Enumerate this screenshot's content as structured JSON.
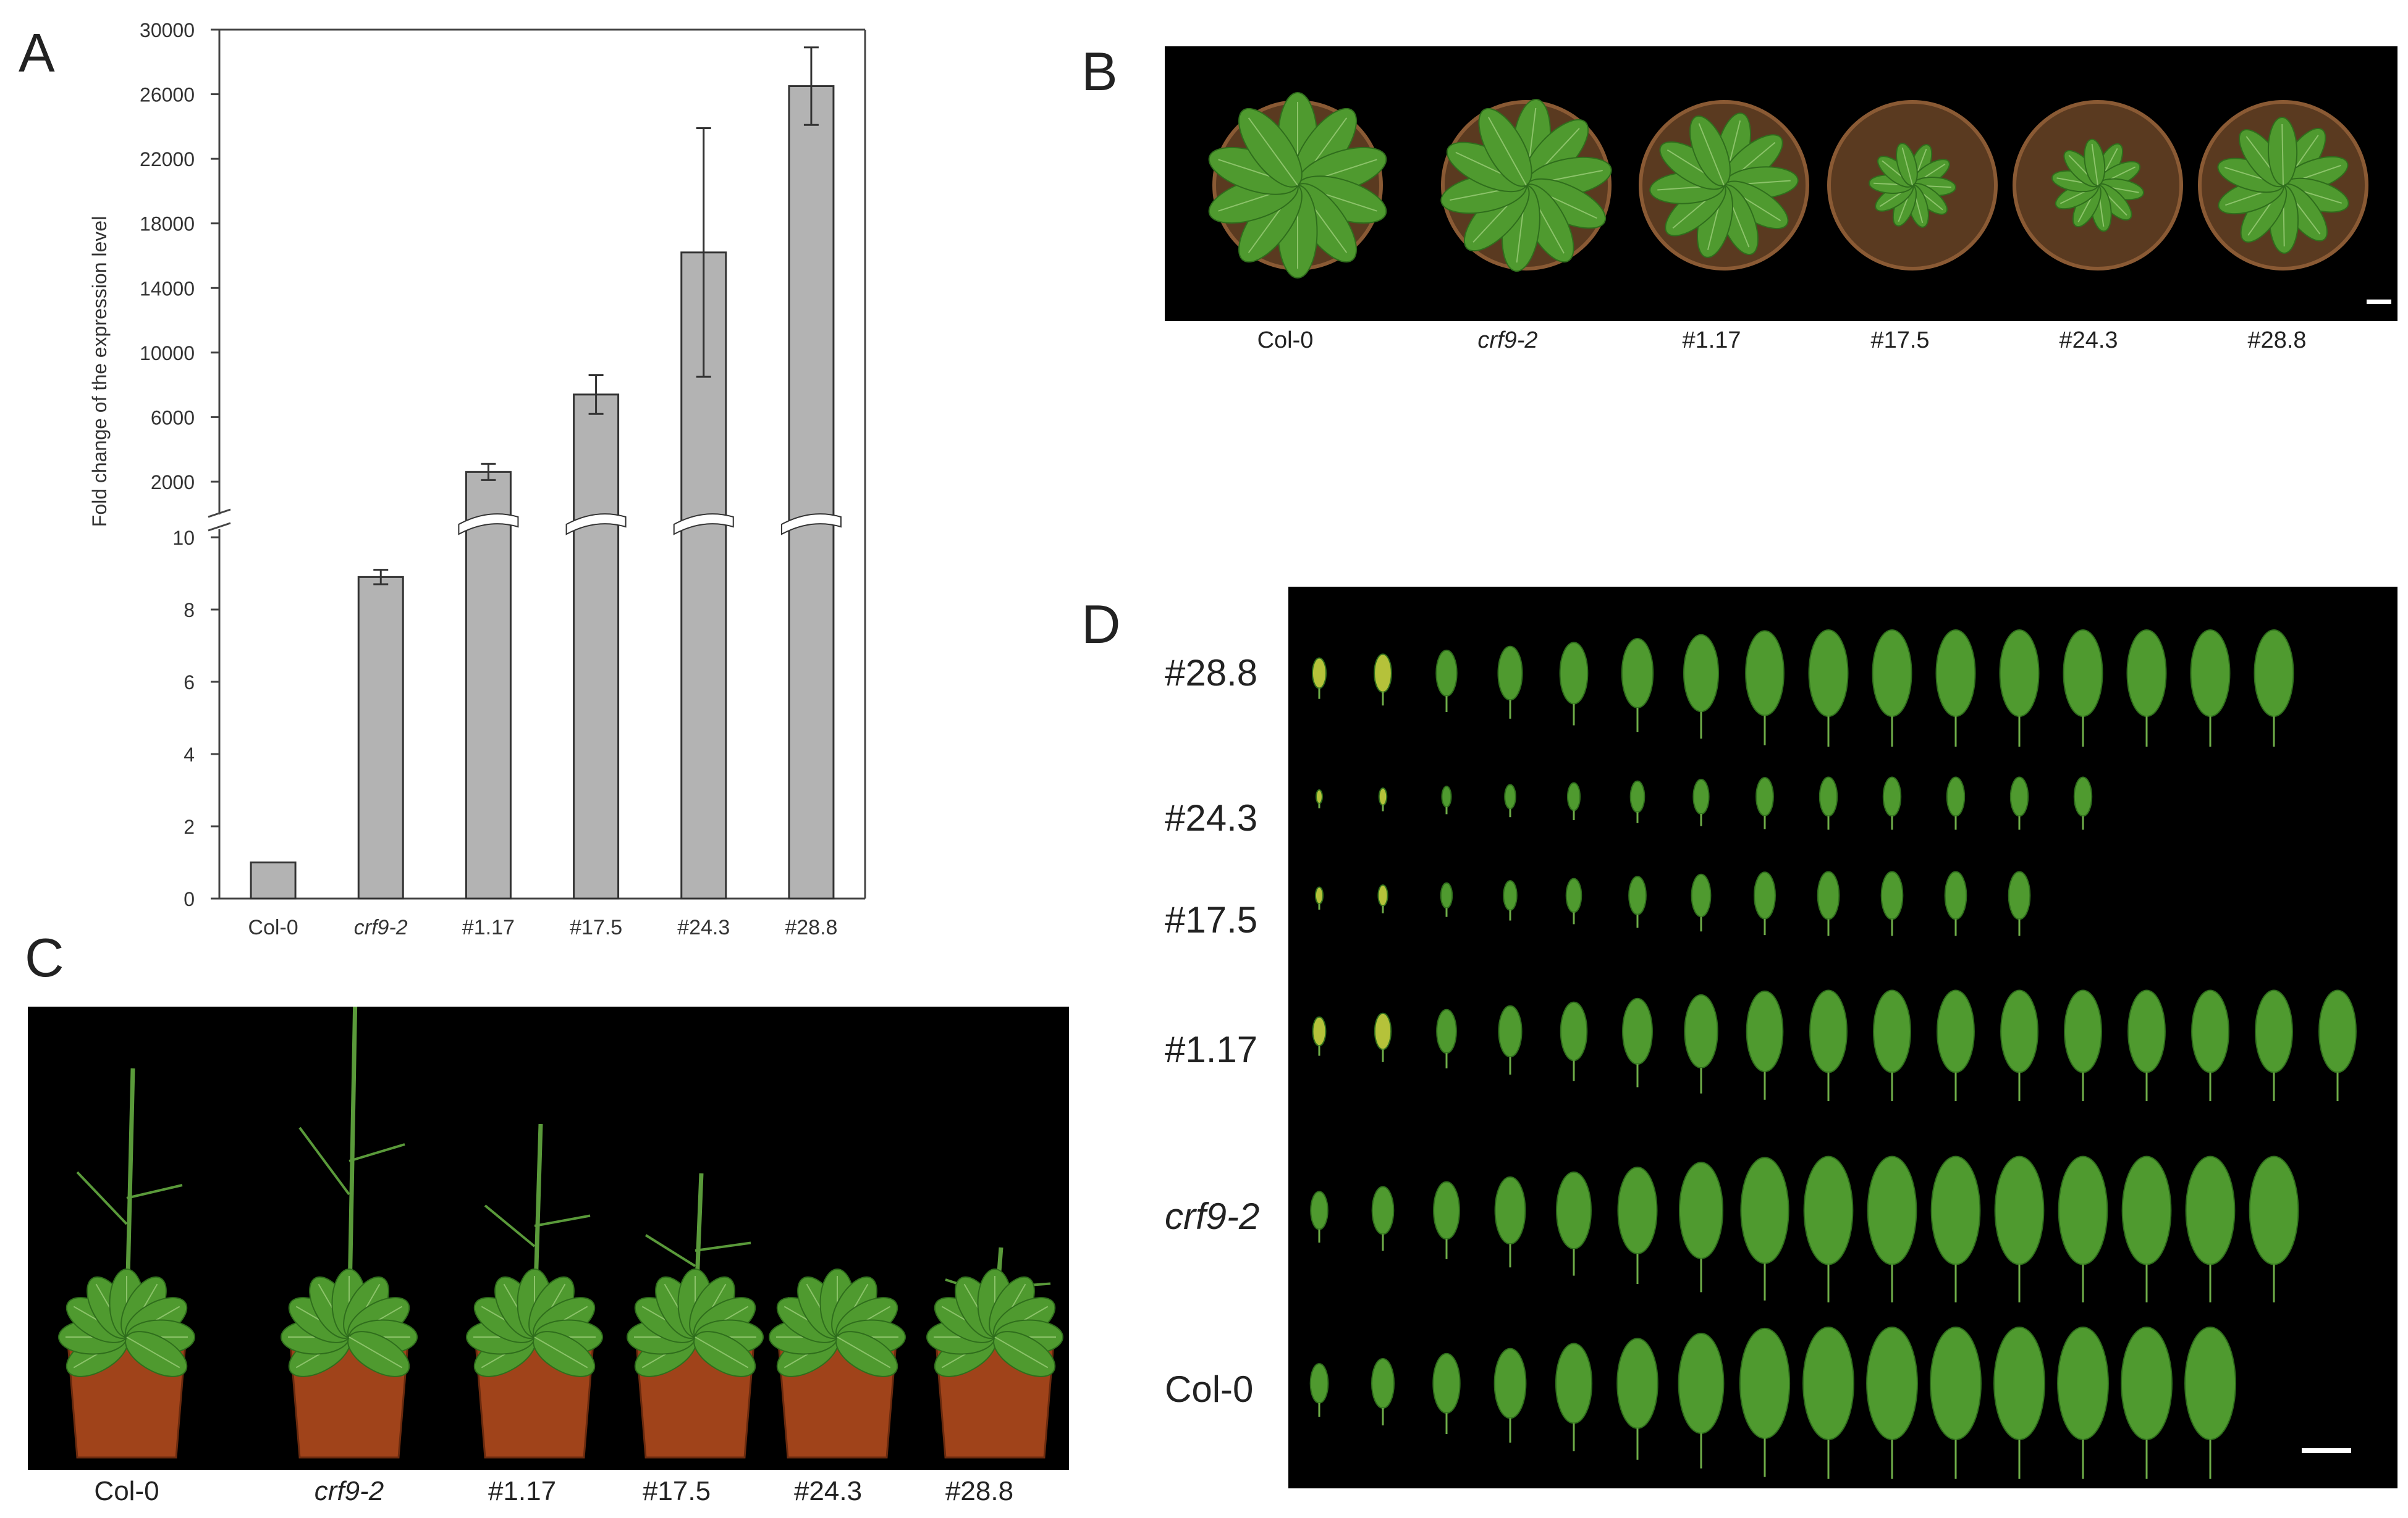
{
  "panels": {
    "a": "A",
    "b": "B",
    "c": "C",
    "d": "D"
  },
  "chart_data": {
    "type": "bar",
    "ylabel": "Fold change of the expression level",
    "broken_axis": true,
    "lower_axis": {
      "ylim": [
        0,
        10
      ],
      "ticks": [
        "0",
        "2",
        "4",
        "6",
        "8",
        "10"
      ]
    },
    "upper_axis": {
      "ylim": [
        2000,
        30000
      ],
      "ticks": [
        "2000",
        "6000",
        "10000",
        "14000",
        "18000",
        "22000",
        "26000",
        "30000"
      ]
    },
    "categories": [
      "Col-0",
      "crf9-2",
      "#1.17",
      "#17.5",
      "#24.3",
      "#28.8"
    ],
    "italic_categories": [
      "crf9-2"
    ],
    "values": [
      1,
      8.9,
      2600,
      7400,
      16200,
      26500
    ],
    "error": [
      0,
      0.2,
      500,
      1200,
      7700,
      2400
    ],
    "bar_color": "#b3b3b3"
  },
  "panel_b": {
    "labels": [
      "Col-0",
      "crf9-2",
      "#1.17",
      "#17.5",
      "#24.3",
      "#28.8"
    ]
  },
  "panel_c": {
    "labels": [
      "Col-0",
      "crf9-2",
      "#1.17",
      "#17.5",
      "#24.3",
      "#28.8"
    ]
  },
  "panel_d": {
    "rows": [
      "#28.8",
      "#24.3",
      "#17.5",
      "#1.17",
      "crf9-2",
      "Col-0"
    ]
  },
  "colors": {
    "leaf": "#4f9a2f",
    "leaf_dark": "#2f6e1c",
    "pot": "#a0431a",
    "soil": "#6b4a2c"
  }
}
